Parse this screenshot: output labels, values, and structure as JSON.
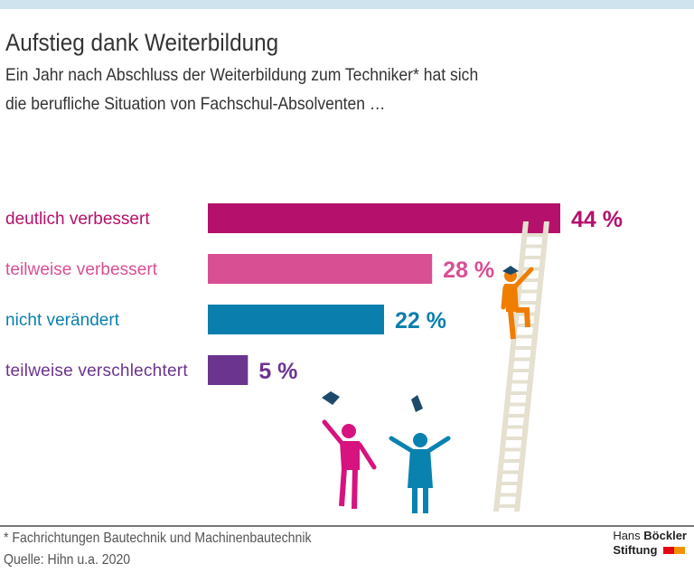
{
  "title": "Aufstieg dank Weiterbildung",
  "subtitle_lines": [
    "Ein Jahr nach Abschluss der Weiterbildung zum Techniker* hat sich",
    "die berufliche Situation von Fachschul-Absolventen …"
  ],
  "footnote": "* Fachrichtungen Bautechnik und Machinenbautechnik",
  "source": "Quelle: Hihn u.a. 2020",
  "logo": {
    "line1_a": "Hans",
    "line1_b": "Böckler",
    "line2": "Stiftung",
    "colors": [
      "#e30613",
      "#f39200"
    ]
  },
  "colors": {
    "top_band": "#cfe3ee"
  },
  "chart_data": {
    "type": "bar",
    "orientation": "horizontal",
    "categories": [
      "deutlich verbessert",
      "teilweise verbessert",
      "nicht verändert",
      "teilweise verschlechtert"
    ],
    "values": [
      44,
      28,
      22,
      5
    ],
    "labels": [
      "44 %",
      "28 %",
      "22 %",
      "5 %"
    ],
    "colors": [
      "#b5106b",
      "#d94f93",
      "#0a7fad",
      "#6b348f"
    ],
    "unit": "%",
    "xlim": [
      0,
      100
    ],
    "grid": false
  }
}
